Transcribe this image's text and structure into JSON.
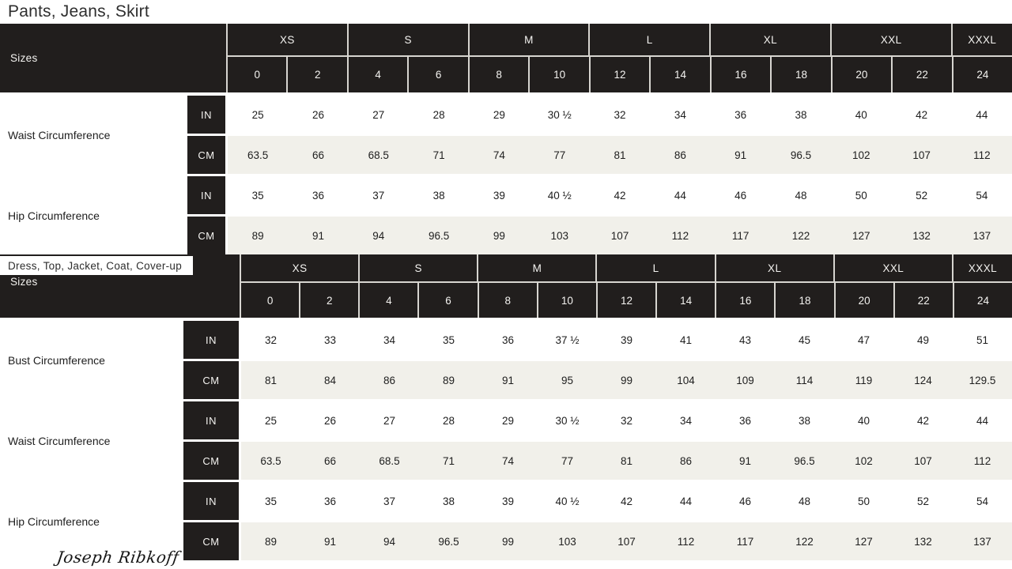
{
  "brand": {
    "logo_text": "Joseph Ribkoff"
  },
  "size_groups": [
    {
      "label": "XS",
      "span": 2
    },
    {
      "label": "S",
      "span": 2
    },
    {
      "label": "M",
      "span": 2
    },
    {
      "label": "L",
      "span": 2
    },
    {
      "label": "XL",
      "span": 2
    },
    {
      "label": "XXL",
      "span": 2
    },
    {
      "label": "XXXL",
      "span": 1
    }
  ],
  "size_numbers": [
    "0",
    "2",
    "4",
    "6",
    "8",
    "10",
    "12",
    "14",
    "16",
    "18",
    "20",
    "22",
    "24"
  ],
  "tables": [
    {
      "title": "Pants, Jeans, Skirt",
      "sizes_label": "Sizes",
      "measurements": [
        {
          "label": "Waist Circumference",
          "rows": [
            {
              "unit": "IN",
              "values": [
                "25",
                "26",
                "27",
                "28",
                "29",
                "30 ½",
                "32",
                "34",
                "36",
                "38",
                "40",
                "42",
                "44"
              ]
            },
            {
              "unit": "CM",
              "values": [
                "63.5",
                "66",
                "68.5",
                "71",
                "74",
                "77",
                "81",
                "86",
                "91",
                "96.5",
                "102",
                "107",
                "112"
              ]
            }
          ]
        },
        {
          "label": "Hip Circumference",
          "rows": [
            {
              "unit": "IN",
              "values": [
                "35",
                "36",
                "37",
                "38",
                "39",
                "40 ½",
                "42",
                "44",
                "46",
                "48",
                "50",
                "52",
                "54"
              ]
            },
            {
              "unit": "CM",
              "values": [
                "89",
                "91",
                "94",
                "96.5",
                "99",
                "103",
                "107",
                "112",
                "117",
                "122",
                "127",
                "132",
                "137"
              ]
            }
          ]
        }
      ]
    },
    {
      "title": "Dress, Top, Jacket, Coat, Cover-up",
      "sizes_label": "Sizes",
      "measurements": [
        {
          "label": "Bust Circumference",
          "rows": [
            {
              "unit": "IN",
              "values": [
                "32",
                "33",
                "34",
                "35",
                "36",
                "37 ½",
                "39",
                "41",
                "43",
                "45",
                "47",
                "49",
                "51"
              ]
            },
            {
              "unit": "CM",
              "values": [
                "81",
                "84",
                "86",
                "89",
                "91",
                "95",
                "99",
                "104",
                "109",
                "114",
                "119",
                "124",
                "129.5"
              ]
            }
          ]
        },
        {
          "label": "Waist Circumference",
          "rows": [
            {
              "unit": "IN",
              "values": [
                "25",
                "26",
                "27",
                "28",
                "29",
                "30 ½",
                "32",
                "34",
                "36",
                "38",
                "40",
                "42",
                "44"
              ]
            },
            {
              "unit": "CM",
              "values": [
                "63.5",
                "66",
                "68.5",
                "71",
                "74",
                "77",
                "81",
                "86",
                "91",
                "96.5",
                "102",
                "107",
                "112"
              ]
            }
          ]
        },
        {
          "label": "Hip Circumference",
          "rows": [
            {
              "unit": "IN",
              "values": [
                "35",
                "36",
                "37",
                "38",
                "39",
                "40 ½",
                "42",
                "44",
                "46",
                "48",
                "50",
                "52",
                "54"
              ]
            },
            {
              "unit": "CM",
              "values": [
                "89",
                "91",
                "94",
                "96.5",
                "99",
                "103",
                "107",
                "112",
                "117",
                "122",
                "127",
                "132",
                "137"
              ]
            }
          ]
        }
      ]
    }
  ],
  "colors": {
    "header_bg": "#211e1d",
    "header_text": "#f4f3f0",
    "row_alt_bg": "#f1f0ea",
    "grid_line": "#d7d5d0",
    "body_text": "#1e1e1e",
    "title_text": "#2e2e2e"
  }
}
